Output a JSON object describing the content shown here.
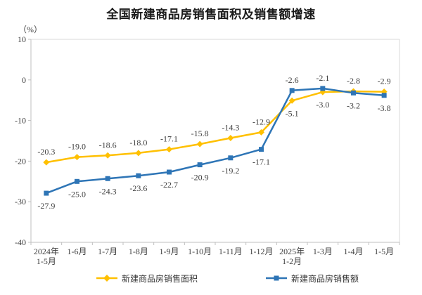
{
  "header": {
    "title": "全国新建商品房销售面积及销售额增速",
    "unit_label": "（%）"
  },
  "chart_data": {
    "type": "line",
    "title": "全国新建商品房销售面积及销售额增速",
    "ylabel": "（%）",
    "xlabel": "",
    "ylim": [
      -40,
      10
    ],
    "yticks": [
      10,
      0,
      -10,
      -20,
      -30,
      -40
    ],
    "grid": false,
    "legend_position": "bottom",
    "categories": [
      "2024年\n1-5月",
      "1-6月",
      "1-7月",
      "1-8月",
      "1-9月",
      "1-10月",
      "1-11月",
      "1-12月",
      "2025年\n1-2月",
      "1-3月",
      "1-4月",
      "1-5月"
    ],
    "series": [
      {
        "name": "新建商品房销售面积",
        "color": "#FFC000",
        "marker": "diamond",
        "values": [
          -20.3,
          -19.0,
          -18.6,
          -18.0,
          -17.1,
          -15.8,
          -14.3,
          -12.9,
          -5.1,
          -3.0,
          -2.8,
          -2.9
        ],
        "label_side": [
          "above",
          "above",
          "above",
          "above",
          "above",
          "above",
          "above",
          "above",
          "below",
          "below",
          "above",
          "above"
        ]
      },
      {
        "name": "新建商品房销售额",
        "color": "#2E75B6",
        "marker": "square",
        "values": [
          -27.9,
          -25.0,
          -24.3,
          -23.6,
          -22.7,
          -20.9,
          -19.2,
          -17.1,
          -2.6,
          -2.1,
          -3.2,
          -3.8
        ],
        "label_side": [
          "below",
          "below",
          "below",
          "below",
          "below",
          "below",
          "below",
          "below",
          "above",
          "above",
          "below",
          "below"
        ]
      }
    ],
    "colors": {
      "data_label": "#404040",
      "axis_line": "#BFBFBF",
      "plot_border": "#D9D9D9",
      "title": "#1a1a1a"
    }
  }
}
